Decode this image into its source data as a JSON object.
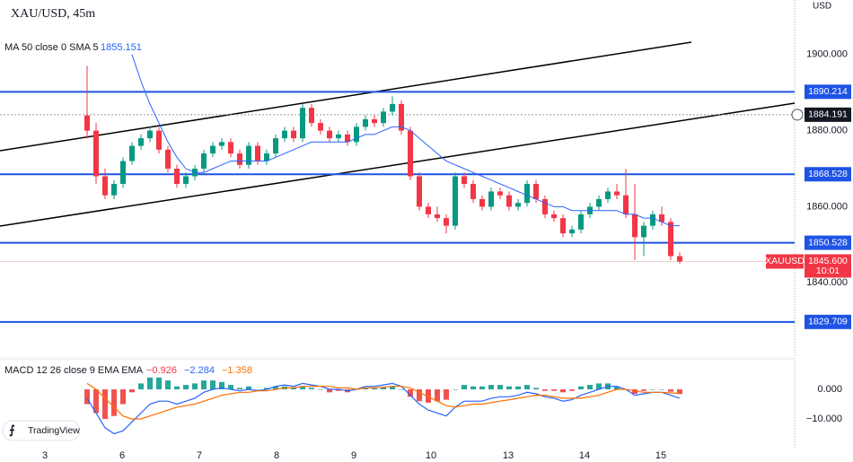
{
  "header": {
    "symbol": "XAU/USD, 45m",
    "currency": "USD"
  },
  "chart_data": [
    {
      "type": "candlestick",
      "name": "XAUUSD",
      "up_color": "#089981",
      "down_color": "#f23645",
      "ylim": [
        1820,
        1914.35
      ],
      "yticks": [
        {
          "value": 1900,
          "label": "1900.000"
        },
        {
          "value": 1880,
          "label": "1880.000"
        },
        {
          "value": 1860,
          "label": "1860.000"
        },
        {
          "value": 1840,
          "label": "1840.000"
        }
      ],
      "xlim": [
        -9.7,
        78.8
      ],
      "xticks": [
        {
          "value": -4.7,
          "label": "3"
        },
        {
          "value": 3.9,
          "label": "6"
        },
        {
          "value": 12.5,
          "label": "7"
        },
        {
          "value": 21.1,
          "label": "8"
        },
        {
          "value": 29.7,
          "label": "9"
        },
        {
          "value": 38.3,
          "label": "10"
        },
        {
          "value": 46.9,
          "label": "13"
        },
        {
          "value": 55.4,
          "label": "14"
        },
        {
          "value": 63.9,
          "label": "15"
        }
      ],
      "candles": [
        [
          1884,
          1897,
          1878,
          1880
        ],
        [
          1880,
          1882,
          1866,
          1868
        ],
        [
          1868,
          1870,
          1862,
          1863
        ],
        [
          1863,
          1867,
          1862,
          1866
        ],
        [
          1866,
          1873,
          1865,
          1872
        ],
        [
          1872,
          1877,
          1871,
          1876
        ],
        [
          1876,
          1879,
          1875,
          1878
        ],
        [
          1878,
          1881,
          1877,
          1880
        ],
        [
          1880,
          1881,
          1874,
          1875
        ],
        [
          1875,
          1876,
          1869,
          1870
        ],
        [
          1870,
          1871,
          1865,
          1866
        ],
        [
          1866,
          1869,
          1865,
          1868
        ],
        [
          1868,
          1871,
          1867,
          1870
        ],
        [
          1870,
          1875,
          1869,
          1874
        ],
        [
          1874,
          1877,
          1873,
          1876
        ],
        [
          1876,
          1878,
          1875,
          1877
        ],
        [
          1877,
          1878,
          1873,
          1874
        ],
        [
          1874,
          1875,
          1870,
          1871
        ],
        [
          1871,
          1877,
          1870,
          1876
        ],
        [
          1876,
          1877,
          1871,
          1872
        ],
        [
          1872,
          1875,
          1871,
          1874
        ],
        [
          1874,
          1879,
          1873,
          1878
        ],
        [
          1878,
          1881,
          1877,
          1880
        ],
        [
          1880,
          1881,
          1877,
          1878
        ],
        [
          1878,
          1887,
          1877,
          1886
        ],
        [
          1886,
          1887,
          1881,
          1882
        ],
        [
          1882,
          1883,
          1879,
          1880
        ],
        [
          1880,
          1881,
          1877,
          1878
        ],
        [
          1878,
          1880,
          1877,
          1879
        ],
        [
          1879,
          1880,
          1876,
          1877
        ],
        [
          1877,
          1882,
          1876,
          1881
        ],
        [
          1881,
          1884,
          1880,
          1883
        ],
        [
          1883,
          1884,
          1881,
          1882
        ],
        [
          1882,
          1886,
          1881,
          1885
        ],
        [
          1885,
          1889,
          1884,
          1887
        ],
        [
          1887,
          1888,
          1879,
          1880
        ],
        [
          1880,
          1881,
          1867,
          1868
        ],
        [
          1868,
          1869,
          1859,
          1860
        ],
        [
          1860,
          1861,
          1857,
          1858
        ],
        [
          1858,
          1860,
          1856,
          1857
        ],
        [
          1857,
          1858,
          1853,
          1855
        ],
        [
          1855,
          1869,
          1854,
          1868
        ],
        [
          1868,
          1869,
          1865,
          1866
        ],
        [
          1866,
          1867,
          1861,
          1862
        ],
        [
          1862,
          1863,
          1859,
          1860
        ],
        [
          1860,
          1865,
          1859,
          1864
        ],
        [
          1864,
          1865,
          1862,
          1863
        ],
        [
          1863,
          1864,
          1859,
          1860
        ],
        [
          1860,
          1862,
          1859,
          1861
        ],
        [
          1861,
          1867,
          1860,
          1866
        ],
        [
          1866,
          1867,
          1861,
          1862
        ],
        [
          1862,
          1863,
          1857,
          1858
        ],
        [
          1858,
          1859,
          1856,
          1857
        ],
        [
          1857,
          1858,
          1852,
          1853
        ],
        [
          1853,
          1855,
          1852,
          1854
        ],
        [
          1854,
          1859,
          1853,
          1858
        ],
        [
          1858,
          1861,
          1857,
          1860
        ],
        [
          1860,
          1863,
          1859,
          1862
        ],
        [
          1862,
          1865,
          1861,
          1864
        ],
        [
          1864,
          1866,
          1862,
          1863
        ],
        [
          1863,
          1870,
          1857,
          1858
        ],
        [
          1858,
          1866,
          1846,
          1852
        ],
        [
          1852,
          1856,
          1847,
          1855
        ],
        [
          1855,
          1859,
          1854,
          1858
        ],
        [
          1858,
          1860,
          1855,
          1856
        ],
        [
          1856,
          1857,
          1846,
          1847
        ],
        [
          1847,
          1848,
          1845,
          1845.6
        ]
      ],
      "ma": {
        "label": "MA 50 close 0 SMA 5",
        "value": 1855.151,
        "color": "#2962ff",
        "values": [
          null,
          null,
          null,
          null,
          null,
          1900,
          1893,
          1887,
          1882,
          1877,
          1873,
          1870,
          1869,
          1869,
          1870,
          1871,
          1872,
          1872,
          1872,
          1872,
          1872,
          1873,
          1874,
          1875,
          1876,
          1877,
          1877,
          1877,
          1877,
          1877,
          1878,
          1879,
          1879,
          1880,
          1881,
          1881,
          1880,
          1878,
          1876,
          1874,
          1872,
          1871,
          1870,
          1869,
          1868,
          1867,
          1866,
          1865,
          1864,
          1863,
          1862,
          1861,
          1860,
          1860,
          1859,
          1859,
          1859,
          1859,
          1859,
          1859,
          1858,
          1858,
          1857,
          1857,
          1856,
          1855,
          1855
        ]
      },
      "levels": [
        1890.214,
        1868.528,
        1850.528,
        1829.709
      ],
      "level_color": "#1e53e5",
      "crosshair": 1884.191,
      "last": {
        "value": 1845.6,
        "label": "1845.600",
        "countdown": "10:01"
      }
    },
    {
      "type": "macd",
      "label": "MACD 12 26 close 9 EMA EMA",
      "legend_values": [
        {
          "value": -0.926,
          "label": "−0.926"
        },
        {
          "value": -2.284,
          "label": "−2.284"
        },
        {
          "value": -1.358,
          "label": "−1.358"
        }
      ],
      "legend_colors": [
        "#f23645",
        "#2962ff",
        "#ff6d00"
      ],
      "ylim": [
        -20,
        8.8
      ],
      "yticks": [
        {
          "value": 0,
          "label": "0.000"
        },
        {
          "value": -10,
          "label": "−10.000"
        }
      ],
      "up_color": "#26a69a",
      "down_color": "#ef5350",
      "histogram": [
        -5,
        -8,
        -10,
        -9,
        -5,
        -1,
        2,
        4,
        4,
        3,
        1,
        1.5,
        2,
        3,
        3,
        2.5,
        1.5,
        0.5,
        1,
        0,
        0.5,
        1,
        1,
        0.5,
        1,
        0.5,
        0,
        -1,
        -0.5,
        -1,
        0,
        0.5,
        0.5,
        0.8,
        1,
        0,
        -2.5,
        -4,
        -4.5,
        -4,
        -3.5,
        0,
        1.5,
        1,
        1,
        1.5,
        1.5,
        1,
        1,
        1.5,
        0.5,
        -0.5,
        -0.5,
        -1,
        -0.5,
        1,
        1.5,
        2,
        2,
        1,
        0,
        -1.5,
        -0.5,
        0,
        0,
        -0.8,
        -1.6
      ],
      "macd": {
        "color": "#2962ff",
        "values": [
          -3,
          -8,
          -13,
          -15,
          -14,
          -11,
          -8,
          -5,
          -4,
          -4,
          -5,
          -4,
          -3,
          -1,
          0,
          0.5,
          0,
          -0.5,
          0,
          -0.5,
          0,
          1,
          1.5,
          1,
          2,
          1.5,
          1,
          0,
          0,
          -0.5,
          0,
          1,
          1,
          1.5,
          2,
          1,
          -2,
          -5,
          -7,
          -8,
          -9,
          -6,
          -4,
          -4,
          -4,
          -3,
          -2.5,
          -2.5,
          -2,
          -1,
          -1.5,
          -2.5,
          -3,
          -4,
          -3.5,
          -2,
          -1,
          0,
          1,
          1,
          0,
          -2,
          -1.5,
          -1,
          -1,
          -2,
          -3
        ]
      },
      "signal": {
        "color": "#ff6d00",
        "values": [
          2,
          0,
          -3,
          -6,
          -9,
          -10,
          -10,
          -9,
          -8,
          -7,
          -6,
          -5.5,
          -5,
          -4,
          -3,
          -2,
          -1.5,
          -1,
          -1,
          -0.5,
          -0.5,
          0,
          0.5,
          0.5,
          1,
          1,
          1,
          1,
          0.5,
          0.5,
          0,
          0.5,
          0.5,
          0.7,
          1,
          1,
          0.5,
          -1,
          -2.5,
          -4,
          -5.5,
          -6,
          -5.5,
          -5,
          -5,
          -4.5,
          -4,
          -3.5,
          -3,
          -2.5,
          -2,
          -2,
          -2.5,
          -3,
          -3,
          -3,
          -2.5,
          -2,
          -1,
          0,
          0,
          -0.5,
          -1,
          -1,
          -1,
          -1.2,
          -1.4
        ]
      }
    }
  ],
  "branding": "TradingView"
}
